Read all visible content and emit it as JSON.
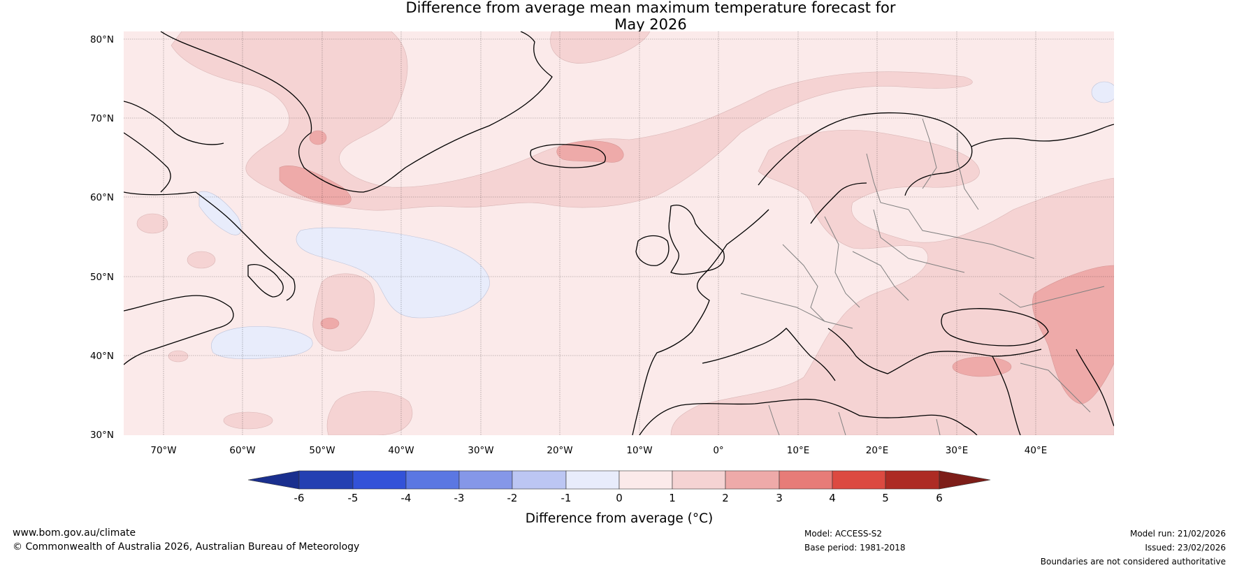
{
  "title": {
    "line1": "Difference from average mean maximum temperature forecast for",
    "line2": "May 2026"
  },
  "map": {
    "lat_labels": [
      "80°N",
      "70°N",
      "60°N",
      "50°N",
      "40°N",
      "30°N"
    ],
    "lon_labels": [
      "70°W",
      "60°W",
      "50°W",
      "40°W",
      "30°W",
      "20°W",
      "10°W",
      "0°",
      "10°E",
      "20°E",
      "30°E",
      "40°E"
    ],
    "region": "North Atlantic and Europe",
    "background_anomaly_class": "0 to 1"
  },
  "colorbar": {
    "label": "Difference from average (°C)",
    "ticks": [
      "-6",
      "-5",
      "-4",
      "-3",
      "-2",
      "-1",
      "0",
      "1",
      "2",
      "3",
      "4",
      "5",
      "6"
    ],
    "colors": [
      "#1a2f8e",
      "#2440b2",
      "#3352d8",
      "#5b77e2",
      "#8597e8",
      "#bcc6f3",
      "#e8ecfb",
      "#fbeaea",
      "#f5d3d3",
      "#eeaaa9",
      "#e77c78",
      "#dc4a41",
      "#ad2b24",
      "#7d1d18"
    ]
  },
  "footer": {
    "website": "www.bom.gov.au/climate",
    "copyright": "© Commonwealth of Australia 2026, Australian Bureau of Meteorology",
    "model": "Model: ACCESS-S2",
    "base_period": "Base period: 1981-2018",
    "model_run": "Model run: 21/02/2026",
    "issued": "Issued: 23/02/2026",
    "disclaimer": "Boundaries are not considered authoritative"
  }
}
